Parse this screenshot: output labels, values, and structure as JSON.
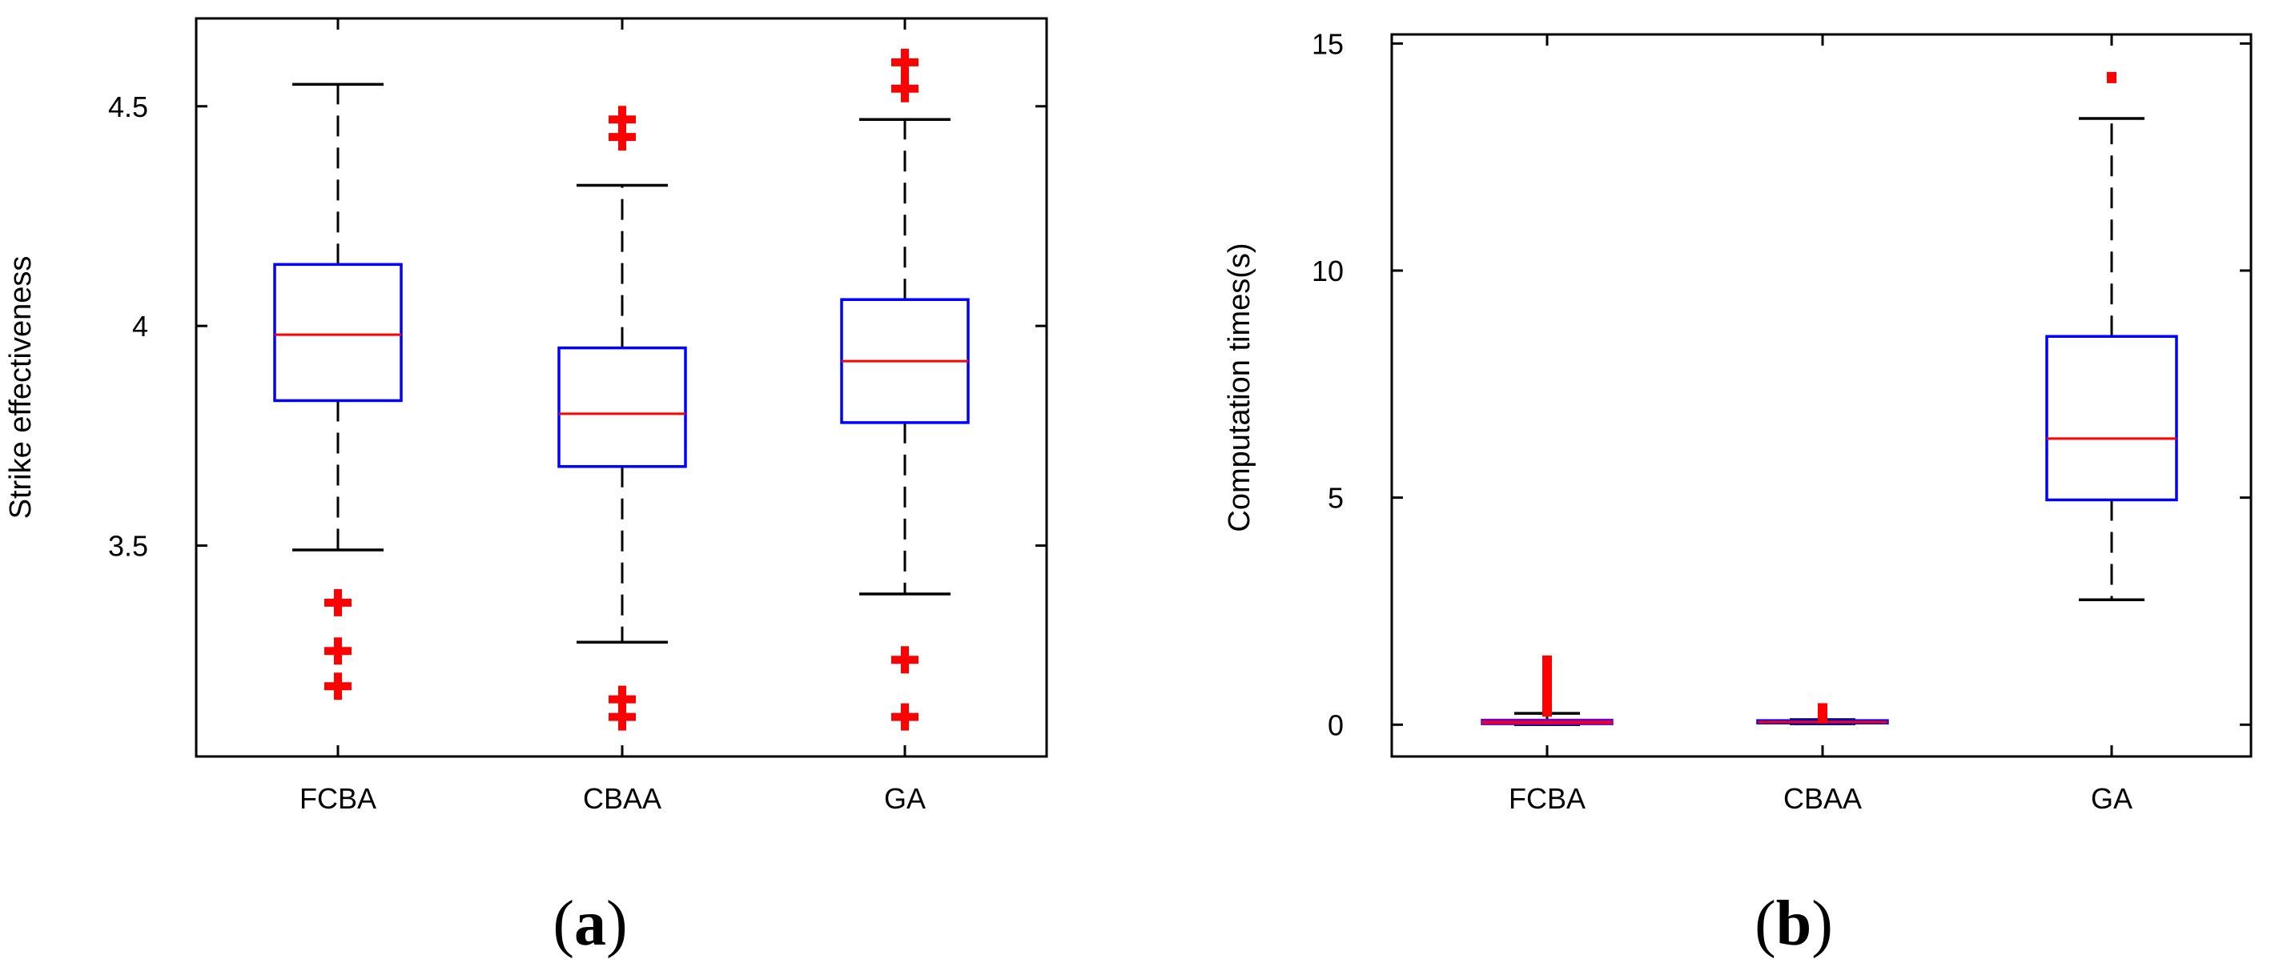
{
  "colors": {
    "box": "#0000ff",
    "median": "#ff0000",
    "whisker": "#000000",
    "outlier": "#ff0000",
    "fcba_box_b": "#7a00c8"
  },
  "chart_data": [
    {
      "type": "box",
      "panel_label": {
        "open": "(",
        "letter": "a",
        "close": ")"
      },
      "title": "",
      "xlabel": "",
      "ylabel": "Strike effectiveness",
      "ylim": [
        3.02,
        4.7
      ],
      "yticks": [
        3.5,
        4,
        4.5
      ],
      "ytick_labels": [
        "3.5",
        "4",
        "4.5"
      ],
      "categories": [
        "FCBA",
        "CBAA",
        "GA"
      ],
      "grid": false,
      "series": [
        {
          "q1": 3.83,
          "median": 3.98,
          "q3": 4.14,
          "whisker_low": 3.49,
          "whisker_high": 4.55,
          "outliers": [
            3.37,
            3.26,
            3.18
          ]
        },
        {
          "q1": 3.68,
          "median": 3.8,
          "q3": 3.95,
          "whisker_low": 3.28,
          "whisker_high": 4.32,
          "outliers": [
            4.47,
            4.43,
            3.15,
            3.11
          ]
        },
        {
          "q1": 3.78,
          "median": 3.92,
          "q3": 4.06,
          "whisker_low": 3.39,
          "whisker_high": 4.47,
          "outliers": [
            4.6,
            4.54,
            3.24,
            3.11
          ]
        }
      ]
    },
    {
      "type": "box",
      "panel_label": {
        "open": "(",
        "letter": "b",
        "close": ")"
      },
      "title": "",
      "xlabel": "",
      "ylabel": "Computation times(s)",
      "ylim": [
        -0.7,
        15.2
      ],
      "yticks": [
        0,
        5,
        10,
        15
      ],
      "ytick_labels": [
        "0",
        "5",
        "10",
        "15"
      ],
      "categories": [
        "FCBA",
        "CBAA",
        "GA"
      ],
      "grid": false,
      "series": [
        {
          "q1": 0.02,
          "median": 0.05,
          "q3": 0.1,
          "whisker_low": 0.0,
          "whisker_high": 0.25,
          "outliers": [
            0.3,
            0.4,
            0.5,
            0.6,
            0.7,
            0.8,
            0.9,
            1.0,
            1.1,
            1.2,
            1.3,
            1.4
          ]
        },
        {
          "q1": 0.04,
          "median": 0.06,
          "q3": 0.09,
          "whisker_low": 0.02,
          "whisker_high": 0.11,
          "outliers": [
            0.15,
            0.2,
            0.25,
            0.3,
            0.35
          ]
        },
        {
          "q1": 4.95,
          "median": 6.3,
          "q3": 8.55,
          "whisker_low": 2.75,
          "whisker_high": 13.35,
          "outliers": [
            14.25
          ]
        }
      ]
    }
  ]
}
